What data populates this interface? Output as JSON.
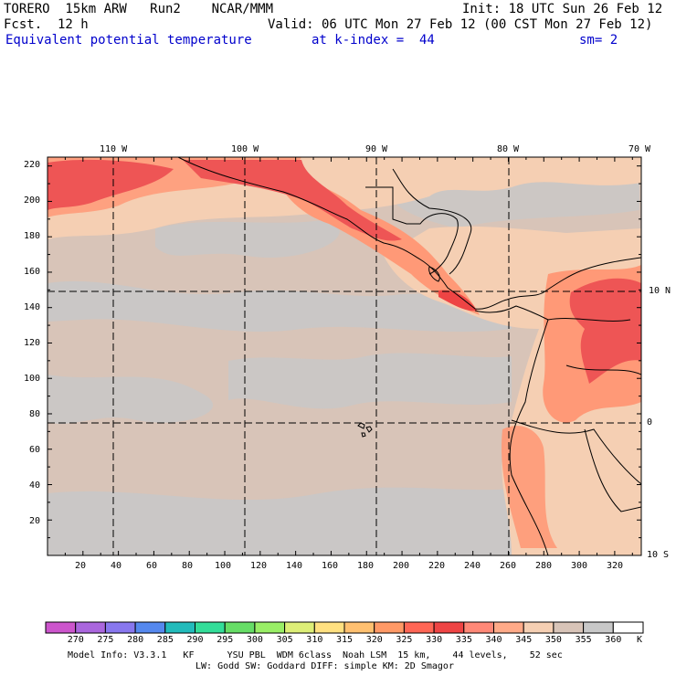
{
  "header": {
    "model": "TORERO  15km ARW   Run2    NCAR/MMM",
    "init": "Init: 18 UTC Sun 26 Feb 12",
    "fcst": "Fcst.  12 h",
    "valid": "Valid: 06 UTC Mon 27 Feb 12 (00 CST Mon 27 Feb 12)",
    "field": "Equivalent potential temperature",
    "level": "at k-index =  44",
    "smooth": "sm= 2"
  },
  "map": {
    "top_lon_labels": [
      "110 W",
      "100 W",
      "90 W",
      "80 W",
      "70 W"
    ],
    "right_lat_labels": [
      "10 N",
      "0",
      "10 S"
    ],
    "y_ticks": [
      "220",
      "200",
      "180",
      "160",
      "140",
      "120",
      "100",
      "80",
      "60",
      "40",
      "20"
    ],
    "x_ticks": [
      "20",
      "40",
      "60",
      "80",
      "100",
      "120",
      "140",
      "160",
      "180",
      "200",
      "220",
      "240",
      "260",
      "280",
      "300",
      "320"
    ],
    "grid_lon_indices": [
      40,
      113,
      185,
      260
    ],
    "grid_lat_indices": [
      150,
      76
    ],
    "domain": {
      "nx": 335,
      "ny": 225
    }
  },
  "colorbar": {
    "levels": [
      "270",
      "275",
      "280",
      "285",
      "290",
      "295",
      "300",
      "305",
      "310",
      "315",
      "320",
      "325",
      "330",
      "335",
      "340",
      "345",
      "350",
      "355",
      "360"
    ],
    "unit": "K",
    "colors": [
      "#cc55cc",
      "#aa66dd",
      "#8877ee",
      "#5588ee",
      "#22bbbb",
      "#33dd99",
      "#66dd66",
      "#99ee66",
      "#ddee77",
      "#ffe080",
      "#ffc070",
      "#ff9966",
      "#ff6655",
      "#ee4444",
      "#ff8877",
      "#ffaa88",
      "#f5cfb3",
      "#d8c4b8",
      "#c8c8c8",
      "#ffffff"
    ]
  },
  "footer": {
    "line1": "Model Info: V3.3.1   KF      YSU PBL  WDM 6class  Noah LSM  15 km,    44 levels,    52 sec",
    "line2": "LW: Godd SW: Goddard DIFF: simple KM: 2D Smagor"
  }
}
